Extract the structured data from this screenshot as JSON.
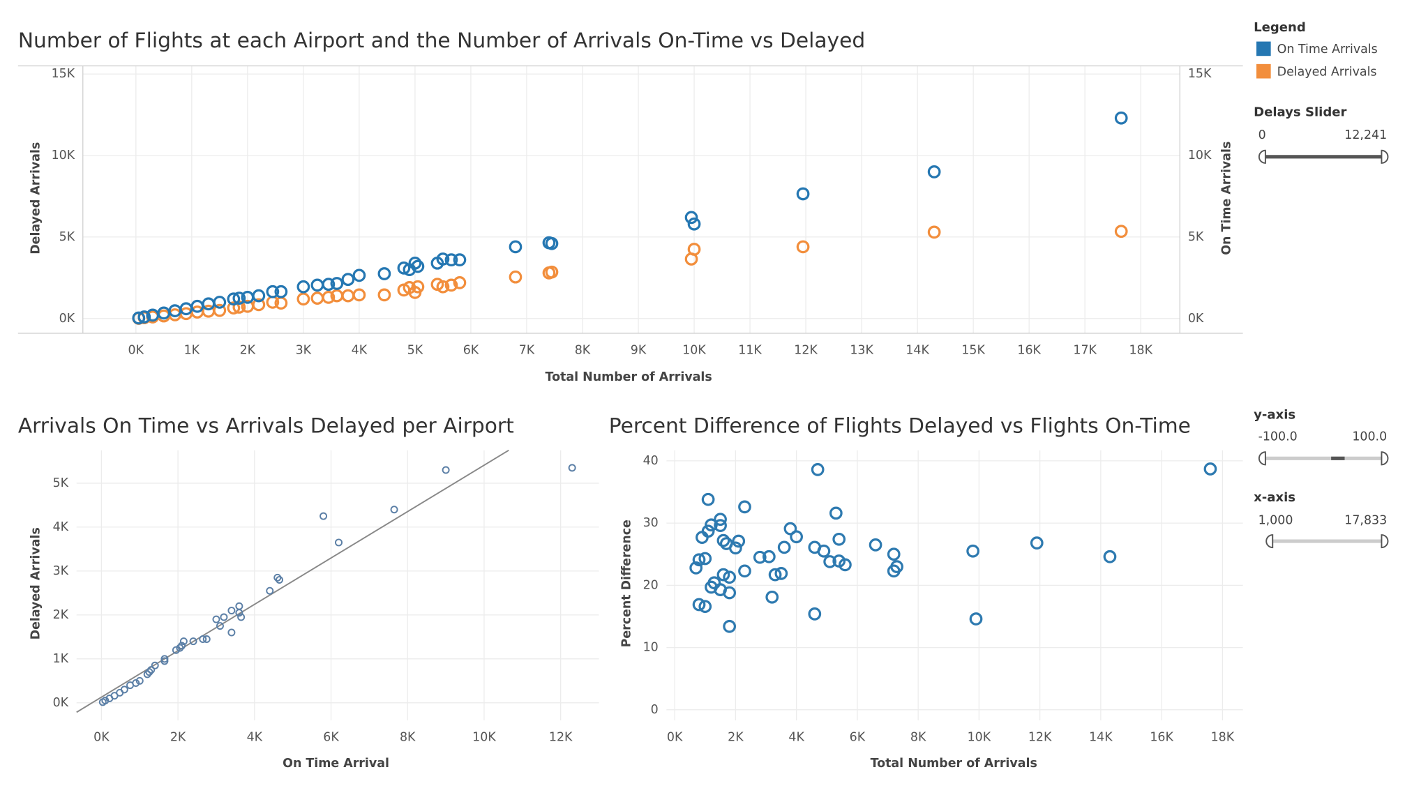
{
  "chart_data": [
    {
      "type": "scatter",
      "title": "Number of Flights at each Airport and the Number of Arrivals On-Time vs Delayed",
      "x_label": "Total Number of Arrivals",
      "y_label": "Delayed Arrivals",
      "y2_label": "On Time Arrivals",
      "xlim": [
        -950,
        18700
      ],
      "ylim": [
        -900,
        15500
      ],
      "y2lim": [
        -900,
        15500
      ],
      "xticks": [
        {
          "value": 0,
          "label": "0K"
        },
        {
          "value": 1000,
          "label": "1K"
        },
        {
          "value": 2000,
          "label": "2K"
        },
        {
          "value": 3000,
          "label": "3K"
        },
        {
          "value": 4000,
          "label": "4K"
        },
        {
          "value": 5000,
          "label": "5K"
        },
        {
          "value": 6000,
          "label": "6K"
        },
        {
          "value": 7000,
          "label": "7K"
        },
        {
          "value": 8000,
          "label": "8K"
        },
        {
          "value": 9000,
          "label": "9K"
        },
        {
          "value": 10000,
          "label": "10K"
        },
        {
          "value": 11000,
          "label": "11K"
        },
        {
          "value": 12000,
          "label": "12K"
        },
        {
          "value": 13000,
          "label": "13K"
        },
        {
          "value": 14000,
          "label": "14K"
        },
        {
          "value": 15000,
          "label": "15K"
        },
        {
          "value": 16000,
          "label": "16K"
        },
        {
          "value": 17000,
          "label": "17K"
        },
        {
          "value": 18000,
          "label": "18K"
        }
      ],
      "yticks": [
        {
          "value": 0,
          "label": "0K"
        },
        {
          "value": 5000,
          "label": "5K"
        },
        {
          "value": 10000,
          "label": "10K"
        },
        {
          "value": 15000,
          "label": "15K"
        }
      ],
      "y2ticks": [
        {
          "value": 0,
          "label": "0K"
        },
        {
          "value": 5000,
          "label": "5K"
        },
        {
          "value": 10000,
          "label": "10K"
        },
        {
          "value": 15000,
          "label": "15K"
        }
      ],
      "grid": true,
      "x": [
        17650,
        14300,
        11950,
        9950,
        10000,
        7450,
        7400,
        6800,
        5800,
        5650,
        5500,
        5400,
        5050,
        5000,
        4900,
        4800,
        4450,
        4000,
        3800,
        3600,
        3450,
        3250,
        3000,
        2600,
        2450,
        2200,
        2000,
        1850,
        1750,
        1500,
        1300,
        1100,
        900,
        700,
        500,
        300,
        150,
        50
      ],
      "series": [
        {
          "name": "On Time Arrivals",
          "color": "#2577b2",
          "axis": "y2",
          "values": [
            12300,
            9000,
            7650,
            6200,
            5800,
            4600,
            4650,
            4400,
            3600,
            3600,
            3650,
            3400,
            3200,
            3400,
            3000,
            3100,
            2750,
            2650,
            2400,
            2150,
            2100,
            2050,
            1950,
            1650,
            1650,
            1400,
            1300,
            1250,
            1200,
            1000,
            900,
            750,
            600,
            480,
            340,
            210,
            100,
            35
          ]
        },
        {
          "name": "Delayed Arrivals",
          "color": "#f28e3c",
          "values": [
            5350,
            5300,
            4400,
            3650,
            4250,
            2850,
            2800,
            2550,
            2200,
            2050,
            1950,
            2100,
            1950,
            1600,
            1900,
            1750,
            1450,
            1450,
            1400,
            1400,
            1300,
            1250,
            1200,
            950,
            1000,
            850,
            750,
            700,
            650,
            500,
            450,
            400,
            300,
            230,
            160,
            100,
            50,
            15
          ]
        }
      ]
    },
    {
      "type": "scatter",
      "title": "Arrivals On Time vs Arrivals Delayed per Airport",
      "x_label": "On Time Arrival",
      "y_label": "Delayed Arrivals",
      "xlim": [
        -650,
        13000
      ],
      "ylim": [
        -400,
        5750
      ],
      "xticks": [
        {
          "value": 0,
          "label": "0K"
        },
        {
          "value": 2000,
          "label": "2K"
        },
        {
          "value": 4000,
          "label": "4K"
        },
        {
          "value": 6000,
          "label": "6K"
        },
        {
          "value": 8000,
          "label": "8K"
        },
        {
          "value": 10000,
          "label": "10K"
        },
        {
          "value": 12000,
          "label": "12K"
        }
      ],
      "yticks": [
        {
          "value": 0,
          "label": "0K"
        },
        {
          "value": 1000,
          "label": "1K"
        },
        {
          "value": 2000,
          "label": "2K"
        },
        {
          "value": 3000,
          "label": "3K"
        },
        {
          "value": 4000,
          "label": "4K"
        },
        {
          "value": 5000,
          "label": "5K"
        }
      ],
      "grid": true,
      "trend_line": "linear",
      "x": [
        12300,
        9000,
        7650,
        6200,
        5800,
        4600,
        4650,
        4400,
        3600,
        3600,
        3650,
        3400,
        3200,
        3400,
        3000,
        3100,
        2750,
        2650,
        2400,
        2150,
        2100,
        2050,
        1950,
        1650,
        1650,
        1400,
        1300,
        1250,
        1200,
        1000,
        900,
        750,
        600,
        480,
        340,
        210,
        100,
        35
      ],
      "series": [
        {
          "color": "#5b7fa6",
          "values": [
            5350,
            5300,
            4400,
            3650,
            4250,
            2850,
            2800,
            2550,
            2200,
            2050,
            1950,
            2100,
            1950,
            1600,
            1900,
            1750,
            1450,
            1450,
            1400,
            1400,
            1300,
            1250,
            1200,
            950,
            1000,
            850,
            750,
            700,
            650,
            500,
            450,
            400,
            300,
            230,
            160,
            100,
            50,
            15
          ]
        }
      ]
    },
    {
      "type": "scatter",
      "title": "Percent Difference of Flights Delayed vs Flights On-Time",
      "x_label": "Total Number of Arrivals",
      "y_label": "Percent Difference",
      "xlim": [
        -270,
        18670
      ],
      "ylim": [
        -1.7,
        41.7
      ],
      "xticks": [
        {
          "value": 0,
          "label": "0K"
        },
        {
          "value": 2000,
          "label": "2K"
        },
        {
          "value": 4000,
          "label": "4K"
        },
        {
          "value": 6000,
          "label": "6K"
        },
        {
          "value": 8000,
          "label": "8K"
        },
        {
          "value": 10000,
          "label": "10K"
        },
        {
          "value": 12000,
          "label": "12K"
        },
        {
          "value": 14000,
          "label": "14K"
        },
        {
          "value": 16000,
          "label": "16K"
        },
        {
          "value": 18000,
          "label": "18K"
        }
      ],
      "yticks": [
        0,
        10,
        20,
        30,
        40
      ],
      "grid": true,
      "x": [
        17600,
        14300,
        11900,
        9800,
        9900,
        7200,
        7200,
        7300,
        6600,
        5600,
        5400,
        5300,
        5400,
        4900,
        4700,
        4600,
        4600,
        5100,
        4000,
        3800,
        3600,
        3500,
        3300,
        3200,
        3100,
        2800,
        2300,
        2300,
        2100,
        2000,
        1800,
        1800,
        1800,
        1700,
        1600,
        1500,
        1600,
        1500,
        1500,
        1200,
        1100,
        1100,
        900,
        1300,
        1200,
        1000,
        700,
        800,
        1000,
        800
      ],
      "series": [
        {
          "color": "#2e7ab0",
          "values": [
            38.7,
            24.6,
            26.8,
            25.5,
            14.6,
            25.0,
            22.3,
            23.0,
            26.5,
            23.3,
            27.4,
            31.6,
            23.9,
            25.5,
            38.6,
            15.4,
            26.1,
            23.8,
            27.8,
            29.1,
            26.1,
            21.9,
            21.7,
            18.1,
            24.6,
            24.5,
            22.3,
            32.6,
            27.1,
            26.0,
            13.4,
            18.8,
            21.3,
            26.7,
            21.7,
            19.3,
            27.2,
            30.6,
            29.6,
            29.7,
            33.8,
            28.7,
            27.7,
            20.4,
            19.7,
            24.3,
            22.8,
            16.9,
            16.6,
            24.1
          ]
        }
      ]
    }
  ],
  "sidebar": {
    "legend_title": "Legend",
    "sliders": [
      {
        "label": "Delays Slider",
        "min": "0",
        "max": "12,241"
      },
      {
        "label": "y-axis",
        "min": "-100.0",
        "max": "100.0"
      },
      {
        "label": "x-axis",
        "min": "1,000",
        "max": "17,833"
      }
    ]
  }
}
